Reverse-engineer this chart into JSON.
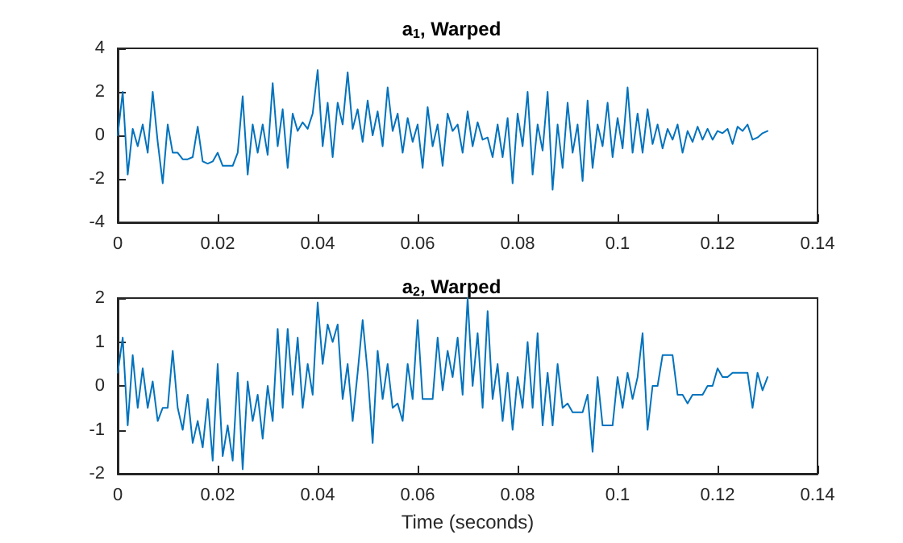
{
  "chart_data": [
    {
      "type": "line",
      "title": "a$_{1}$, Warped",
      "color": "#0072bd",
      "marker": "none",
      "line_style": "solid",
      "xlim": [
        0,
        0.14
      ],
      "xticks": [
        0,
        0.02,
        0.04,
        0.06,
        0.08,
        0.1,
        0.12,
        0.14
      ],
      "ylim": [
        -4,
        4
      ],
      "yticks": [
        -4,
        -2,
        0,
        2,
        4
      ],
      "x": [
        0,
        0.001,
        0.002,
        0.003,
        0.004,
        0.005,
        0.006,
        0.007,
        0.008,
        0.009,
        0.01,
        0.011,
        0.012,
        0.013,
        0.014,
        0.015,
        0.016,
        0.017,
        0.018,
        0.019,
        0.02,
        0.021,
        0.022,
        0.023,
        0.024,
        0.025,
        0.026,
        0.027,
        0.028,
        0.029,
        0.03,
        0.031,
        0.032,
        0.033,
        0.034,
        0.035,
        0.036,
        0.037,
        0.038,
        0.039,
        0.04,
        0.041,
        0.042,
        0.043,
        0.044,
        0.045,
        0.046,
        0.047,
        0.048,
        0.049,
        0.05,
        0.051,
        0.052,
        0.053,
        0.054,
        0.055,
        0.056,
        0.057,
        0.058,
        0.059,
        0.06,
        0.061,
        0.062,
        0.063,
        0.064,
        0.065,
        0.066,
        0.067,
        0.068,
        0.069,
        0.07,
        0.071,
        0.072,
        0.073,
        0.074,
        0.075,
        0.076,
        0.077,
        0.078,
        0.079,
        0.08,
        0.081,
        0.082,
        0.083,
        0.084,
        0.085,
        0.086,
        0.087,
        0.088,
        0.089,
        0.09,
        0.091,
        0.092,
        0.093,
        0.094,
        0.095,
        0.096,
        0.097,
        0.098,
        0.099,
        0.1,
        0.101,
        0.102,
        0.103,
        0.104,
        0.105,
        0.106,
        0.107,
        0.108,
        0.109,
        0.11,
        0.111,
        0.112,
        0.113,
        0.114,
        0.115,
        0.116,
        0.117,
        0.118,
        0.119,
        0.12,
        0.121,
        0.122,
        0.123,
        0.124,
        0.125,
        0.126,
        0.127,
        0.128,
        0.129,
        0.13
      ],
      "values": [
        0,
        2,
        -1.8,
        0.3,
        -0.5,
        0.5,
        -0.8,
        2,
        -0.3,
        -2.2,
        0.5,
        -0.8,
        -0.8,
        -1.1,
        -1.1,
        -1,
        0.4,
        -1.2,
        -1.3,
        -1.2,
        -0.8,
        -1.4,
        -1.4,
        -1.4,
        -0.8,
        1.8,
        -1.8,
        0.5,
        -0.8,
        0.5,
        -0.9,
        2.4,
        -0.5,
        1.2,
        -1.5,
        1,
        0.2,
        0.6,
        0.3,
        1,
        3,
        -0.5,
        1.5,
        -1,
        1.5,
        0.5,
        2.9,
        0.3,
        1.2,
        -0.3,
        1.6,
        0,
        1.1,
        -0.5,
        2.2,
        0.2,
        1,
        -0.8,
        0.8,
        -0.3,
        0.5,
        -1.5,
        1.3,
        -0.5,
        0.5,
        -1.4,
        1,
        0.2,
        0.5,
        -0.8,
        1.1,
        -0.5,
        0.6,
        -0.2,
        -0.1,
        -1,
        0.5,
        -1,
        0.8,
        -2.2,
        1,
        -0.5,
        2,
        -1.8,
        0.5,
        -0.7,
        2,
        -2.5,
        0.5,
        -1.5,
        1.5,
        -0.8,
        0.5,
        -2.1,
        1.6,
        -1.5,
        0.5,
        -0.5,
        1.5,
        -1,
        0.8,
        -0.6,
        2.2,
        -0.8,
        1,
        -0.8,
        1.2,
        -0.4,
        0.5,
        -0.6,
        0.3,
        -0.2,
        0.5,
        -0.8,
        0.2,
        -0.3,
        0.4,
        -0.2,
        0.3,
        -0.2,
        0.2,
        0.1,
        0.3,
        -0.4,
        0.4,
        0.2,
        0.5,
        -0.2,
        -0.1,
        0.1,
        0.2
      ]
    },
    {
      "type": "line",
      "title": "a$_{2}$, Warped",
      "xlabel": "Time (seconds)",
      "color": "#0072bd",
      "marker": "none",
      "line_style": "solid",
      "xlim": [
        0,
        0.14
      ],
      "xticks": [
        0,
        0.02,
        0.04,
        0.06,
        0.08,
        0.1,
        0.12,
        0.14
      ],
      "ylim": [
        -2,
        2
      ],
      "yticks": [
        -2,
        -1,
        0,
        1,
        2
      ],
      "x": [
        0,
        0.001,
        0.002,
        0.003,
        0.004,
        0.005,
        0.006,
        0.007,
        0.008,
        0.009,
        0.01,
        0.011,
        0.012,
        0.013,
        0.014,
        0.015,
        0.016,
        0.017,
        0.018,
        0.019,
        0.02,
        0.021,
        0.022,
        0.023,
        0.024,
        0.025,
        0.026,
        0.027,
        0.028,
        0.029,
        0.03,
        0.031,
        0.032,
        0.033,
        0.034,
        0.035,
        0.036,
        0.037,
        0.038,
        0.039,
        0.04,
        0.041,
        0.042,
        0.043,
        0.044,
        0.045,
        0.046,
        0.047,
        0.048,
        0.049,
        0.05,
        0.051,
        0.052,
        0.053,
        0.054,
        0.055,
        0.056,
        0.057,
        0.058,
        0.059,
        0.06,
        0.061,
        0.062,
        0.063,
        0.064,
        0.065,
        0.066,
        0.067,
        0.068,
        0.069,
        0.07,
        0.071,
        0.072,
        0.073,
        0.074,
        0.075,
        0.076,
        0.077,
        0.078,
        0.079,
        0.08,
        0.081,
        0.082,
        0.083,
        0.084,
        0.085,
        0.086,
        0.087,
        0.088,
        0.089,
        0.09,
        0.091,
        0.092,
        0.093,
        0.094,
        0.095,
        0.096,
        0.097,
        0.098,
        0.099,
        0.1,
        0.101,
        0.102,
        0.103,
        0.104,
        0.105,
        0.106,
        0.107,
        0.108,
        0.109,
        0.11,
        0.111,
        0.112,
        0.113,
        0.114,
        0.115,
        0.116,
        0.117,
        0.118,
        0.119,
        0.12,
        0.121,
        0.122,
        0.123,
        0.124,
        0.125,
        0.126,
        0.127,
        0.128,
        0.129,
        0.13
      ],
      "values": [
        0.3,
        1.1,
        -0.9,
        0.7,
        -0.5,
        0.4,
        -0.5,
        0.1,
        -0.8,
        -0.5,
        -0.5,
        0.8,
        -0.5,
        -1,
        -0.2,
        -1.3,
        -0.8,
        -1.4,
        -0.3,
        -1.7,
        0.5,
        -1.6,
        -0.9,
        -1.7,
        0.3,
        -1.9,
        0.1,
        -0.8,
        -0.2,
        -1.2,
        0,
        -0.8,
        1.3,
        -0.5,
        1.3,
        -0.2,
        1.1,
        -0.5,
        0.5,
        -0.2,
        1.9,
        0.5,
        1.4,
        1,
        1.4,
        -0.3,
        0.5,
        -0.8,
        0.3,
        1.5,
        0.3,
        -1.3,
        0.8,
        -0.3,
        0.5,
        -0.5,
        -0.4,
        -0.8,
        0.5,
        -0.3,
        1.5,
        -0.3,
        -0.3,
        -0.3,
        1.1,
        -0.1,
        0.8,
        0.2,
        1.1,
        -0.2,
        2,
        0,
        1.2,
        -0.5,
        1.7,
        -0.3,
        0.5,
        -0.8,
        0.3,
        -1,
        0.2,
        -0.5,
        1,
        -0.5,
        1.2,
        -0.9,
        0.3,
        -0.9,
        0.5,
        -0.5,
        -0.4,
        -0.6,
        -0.6,
        -0.6,
        -0.2,
        -1.5,
        0.2,
        -0.9,
        -0.9,
        -0.9,
        0.2,
        -0.5,
        0.3,
        -0.3,
        0.2,
        1.2,
        -1,
        0,
        0,
        0.7,
        0.7,
        0.7,
        -0.2,
        -0.2,
        -0.4,
        -0.2,
        -0.2,
        -0.2,
        0,
        0,
        0.4,
        0.2,
        0.2,
        0.3,
        0.3,
        0.3,
        0.3,
        -0.5,
        0.3,
        -0.1,
        0.2
      ]
    }
  ]
}
